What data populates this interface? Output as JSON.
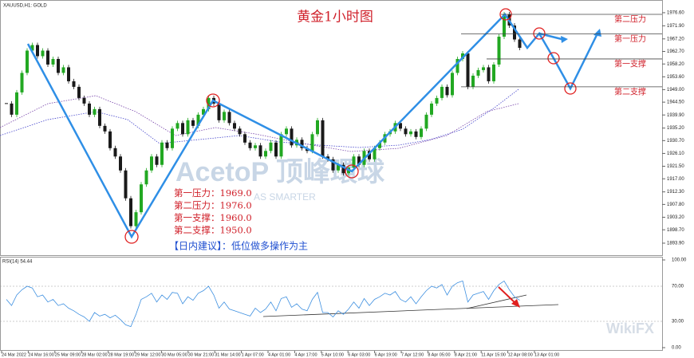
{
  "header": "XAUUSD,H1: GOLD",
  "watermark": {
    "brand": "AcetoP 顶峰環球",
    "slogan": "AS SMARTER",
    "site": "WikiFX"
  },
  "chart_data": {
    "type": "candlestick",
    "title": "黄金1小时图",
    "ylim": [
      1889.6,
      1980.3
    ],
    "yticks": [
      {
        "value": 1976.6,
        "label": "1976.60"
      },
      {
        "value": 1971.9,
        "label": "1971.90"
      },
      {
        "value": 1967.2,
        "label": "1967.20"
      },
      {
        "value": 1962.7,
        "label": "1962.70"
      },
      {
        "value": 1958.2,
        "label": "1958.20"
      },
      {
        "value": 1953.6,
        "label": "1953.60"
      },
      {
        "value": 1949,
        "label": "1949.00"
      },
      {
        "value": 1944.5,
        "label": "1944.50"
      },
      {
        "value": 1939.9,
        "label": "1939.90"
      },
      {
        "value": 1935.2,
        "label": "1935.20"
      },
      {
        "value": 1930.7,
        "label": "1930.70"
      },
      {
        "value": 1926.1,
        "label": "1926.10"
      },
      {
        "value": 1921.5,
        "label": "1921.50"
      },
      {
        "value": 1917,
        "label": "1917.00"
      },
      {
        "value": 1912.3,
        "label": "1912.30"
      },
      {
        "value": 1907.8,
        "label": "1907.80"
      },
      {
        "value": 1903.2,
        "label": "1903.20"
      },
      {
        "value": 1898.7,
        "label": "1898.70"
      },
      {
        "value": 1893.9,
        "label": "1893.90"
      }
    ],
    "up_color": "#22a822",
    "down_color": "#1a1a1a",
    "close": [
      1944,
      1940,
      1948,
      1955,
      1963,
      1965,
      1961,
      1963,
      1958,
      1960,
      1955,
      1957,
      1952,
      1950,
      1946,
      1944,
      1940,
      1942,
      1936,
      1934,
      1928,
      1925,
      1920,
      1910,
      1900,
      1905,
      1915,
      1920,
      1925,
      1922,
      1930,
      1928,
      1935,
      1937,
      1933,
      1938,
      1936,
      1940,
      1942,
      1946,
      1944,
      1938,
      1941,
      1937,
      1935,
      1933,
      1930,
      1928,
      1929,
      1925,
      1927,
      1930,
      1925,
      1933,
      1935,
      1929,
      1931,
      1928,
      1927,
      1933,
      1938,
      1925,
      1924,
      1920,
      1922,
      1919,
      1921,
      1925,
      1922,
      1927,
      1924,
      1928,
      1930,
      1933,
      1934,
      1937,
      1935,
      1933,
      1934,
      1932,
      1935,
      1940,
      1944,
      1946,
      1950,
      1947,
      1955,
      1960,
      1962,
      1950,
      1954,
      1956,
      1957,
      1952,
      1958,
      1968,
      1976,
      1972,
      1967,
      1964
    ],
    "levels": [
      {
        "name": "第二压力",
        "value": 1976
      },
      {
        "name": "第一压力",
        "value": 1969
      },
      {
        "name": "第一支撑",
        "value": 1960
      },
      {
        "name": "第二支撑",
        "value": 1950
      }
    ],
    "notes": [
      "第一压力：1969.0",
      "第二压力：1976.0",
      "第一支撑：1960.0",
      "第二支撑：1950.0"
    ],
    "advice": "【日内建议】：低位做多操作为主",
    "x_labels": [
      "24 Mar 2022",
      "24 Mar 16:00",
      "25 Mar 09:00",
      "28 Mar 02:00",
      "28 Mar 19:00",
      "29 Mar 12:00",
      "30 Mar 05:00",
      "30 Mar 21:00",
      "31 Mar 14:00",
      "1 Apr 07:00",
      "4 Apr 01:00",
      "4 Apr 17:00",
      "5 Apr 10:00",
      "6 Apr 03:00",
      "6 Apr 19:00",
      "7 Apr 12:00",
      "8 Apr 05:00",
      "8 Apr 21:00",
      "11 Apr 15:00",
      "12 Apr 08:00",
      "13 Apr 01:00"
    ],
    "rsi": {
      "name": "RSI(14) 54.44",
      "color": "#3d8fe0",
      "ylim": [
        0,
        100
      ],
      "yticks": [
        {
          "value": 100,
          "label": "100.00"
        },
        {
          "value": 70,
          "label": "70.00"
        },
        {
          "value": 30,
          "label": "30.00"
        },
        {
          "value": 0,
          "label": "0.00"
        }
      ],
      "values": [
        55,
        48,
        60,
        66,
        70,
        68,
        58,
        60,
        52,
        55,
        48,
        50,
        45,
        42,
        38,
        35,
        30,
        40,
        36,
        38,
        34,
        37,
        32,
        26,
        24,
        38,
        55,
        58,
        62,
        52,
        60,
        55,
        63,
        62,
        50,
        58,
        54,
        62,
        65,
        70,
        60,
        45,
        52,
        44,
        42,
        40,
        38,
        36,
        45,
        40,
        44,
        52,
        42,
        56,
        58,
        46,
        50,
        44,
        42,
        55,
        63,
        40,
        40,
        35,
        42,
        38,
        44,
        52,
        45,
        56,
        48,
        55,
        58,
        62,
        60,
        64,
        55,
        52,
        58,
        50,
        58,
        65,
        70,
        68,
        72,
        60,
        70,
        74,
        76,
        52,
        60,
        62,
        64,
        55,
        65,
        72,
        76,
        66,
        58,
        54
      ]
    }
  }
}
